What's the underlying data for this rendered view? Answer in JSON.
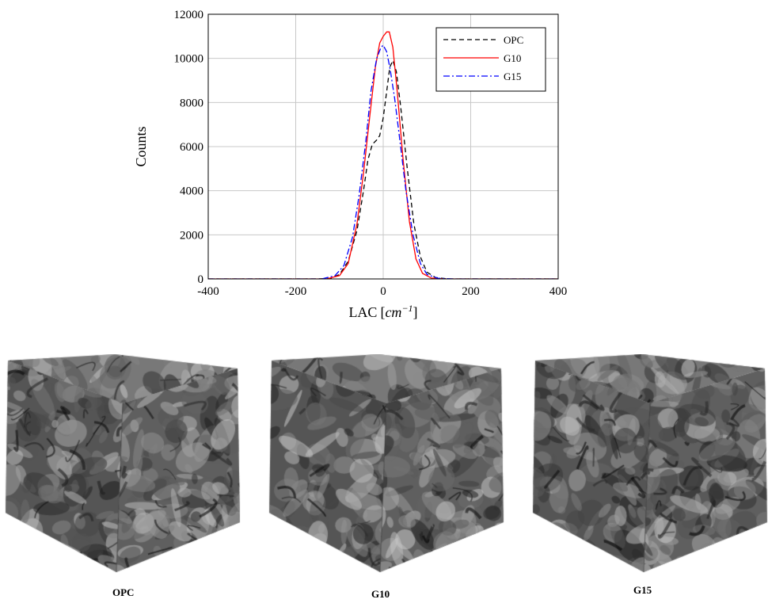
{
  "chart_data": {
    "type": "line",
    "title": "",
    "xlabel_text": "LAC",
    "xlabel_unit_base": "cm",
    "xlabel_unit_exp": "−1",
    "ylabel": "Counts",
    "xlim": [
      -400,
      400
    ],
    "ylim": [
      0,
      12000
    ],
    "xticks": [
      -400,
      -200,
      0,
      200,
      400
    ],
    "yticks": [
      0,
      2000,
      4000,
      6000,
      8000,
      10000,
      12000
    ],
    "grid": true,
    "legend_position": "top-right",
    "series": [
      {
        "name": "OPC",
        "color": "#000000",
        "dash": "6,4",
        "points": [
          [
            -400,
            0
          ],
          [
            -150,
            0
          ],
          [
            -120,
            30
          ],
          [
            -100,
            200
          ],
          [
            -80,
            800
          ],
          [
            -60,
            2200
          ],
          [
            -45,
            4000
          ],
          [
            -35,
            5400
          ],
          [
            -25,
            6100
          ],
          [
            -15,
            6300
          ],
          [
            -8,
            6500
          ],
          [
            0,
            7300
          ],
          [
            8,
            8500
          ],
          [
            15,
            9600
          ],
          [
            22,
            9900
          ],
          [
            30,
            9400
          ],
          [
            40,
            7800
          ],
          [
            55,
            5000
          ],
          [
            70,
            2500
          ],
          [
            85,
            1000
          ],
          [
            100,
            300
          ],
          [
            120,
            60
          ],
          [
            150,
            0
          ],
          [
            400,
            0
          ]
        ]
      },
      {
        "name": "G10",
        "color": "#ff0000",
        "dash": "",
        "points": [
          [
            -400,
            0
          ],
          [
            -130,
            0
          ],
          [
            -100,
            150
          ],
          [
            -80,
            700
          ],
          [
            -60,
            2500
          ],
          [
            -45,
            4800
          ],
          [
            -30,
            7500
          ],
          [
            -18,
            9600
          ],
          [
            -8,
            10700
          ],
          [
            0,
            11000
          ],
          [
            8,
            11200
          ],
          [
            14,
            11200
          ],
          [
            22,
            10500
          ],
          [
            32,
            8500
          ],
          [
            45,
            5500
          ],
          [
            60,
            2600
          ],
          [
            75,
            900
          ],
          [
            90,
            250
          ],
          [
            110,
            40
          ],
          [
            140,
            0
          ],
          [
            400,
            0
          ]
        ]
      },
      {
        "name": "G15",
        "color": "#0000ff",
        "dash": "8,3,2,3",
        "points": [
          [
            -400,
            0
          ],
          [
            -140,
            0
          ],
          [
            -110,
            150
          ],
          [
            -90,
            600
          ],
          [
            -70,
            1900
          ],
          [
            -55,
            3800
          ],
          [
            -40,
            6200
          ],
          [
            -28,
            8500
          ],
          [
            -15,
            10000
          ],
          [
            -5,
            10500
          ],
          [
            0,
            10600
          ],
          [
            8,
            10300
          ],
          [
            16,
            9500
          ],
          [
            26,
            8200
          ],
          [
            38,
            6300
          ],
          [
            52,
            4000
          ],
          [
            68,
            2000
          ],
          [
            85,
            700
          ],
          [
            100,
            200
          ],
          [
            125,
            30
          ],
          [
            160,
            0
          ],
          [
            400,
            0
          ]
        ]
      }
    ]
  },
  "cubes": [
    {
      "label": "OPC",
      "seed": 3
    },
    {
      "label": "G10",
      "seed": 11
    },
    {
      "label": "G15",
      "seed": 19
    }
  ]
}
